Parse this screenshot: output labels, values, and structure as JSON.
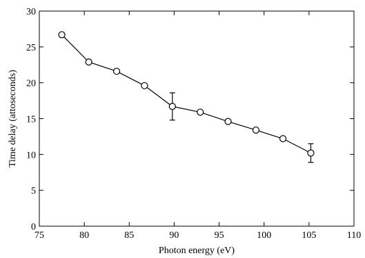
{
  "chart_data": {
    "type": "line",
    "xlabel": "Photon energy (eV)",
    "ylabel": "Time delay (attoseconds)",
    "xlim": [
      75,
      110
    ],
    "ylim": [
      0,
      30
    ],
    "x_ticks": [
      75,
      80,
      85,
      90,
      95,
      100,
      105,
      110
    ],
    "y_ticks": [
      0,
      5,
      10,
      15,
      20,
      25,
      30
    ],
    "grid": false,
    "legend": "none",
    "marker": "open-circle",
    "color": "#000000",
    "series": [
      {
        "x": [
          77.5,
          80.5,
          83.6,
          86.7,
          89.8,
          92.9,
          96.0,
          99.1,
          102.1,
          105.2
        ],
        "y": [
          26.7,
          22.9,
          21.6,
          19.6,
          16.7,
          15.9,
          14.6,
          13.4,
          12.2,
          10.2
        ],
        "error_bars": [
          {
            "x": 89.8,
            "y_low": 14.8,
            "y_high": 18.6
          },
          {
            "x": 105.2,
            "y_low": 8.9,
            "y_high": 11.5
          }
        ]
      }
    ]
  }
}
